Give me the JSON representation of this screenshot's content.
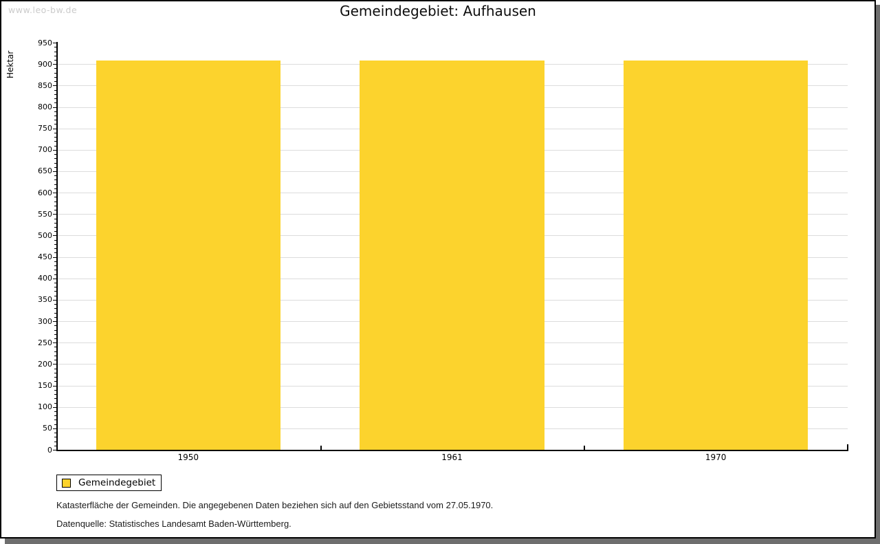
{
  "watermark": "www.leo-bw.de",
  "chart_data": {
    "type": "bar",
    "title": "Gemeindegebiet: Aufhausen",
    "categories": [
      "1950",
      "1961",
      "1970"
    ],
    "series": [
      {
        "name": "Gemeindegebiet",
        "values": [
          908,
          908,
          908
        ]
      }
    ],
    "xlabel": "",
    "ylabel": "Hektar",
    "ylim": [
      0,
      950
    ],
    "ytick_major": 50,
    "ytick_minor": 10,
    "gridlines_at": [
      50,
      100,
      150,
      200,
      250,
      300,
      350,
      400,
      450,
      500,
      550,
      600,
      650,
      700,
      750,
      800,
      850,
      900
    ],
    "grid": true,
    "bar_color": "#FCD32D",
    "gridline_color": "#dcdcdc",
    "legend_position": "bottom-left"
  },
  "legend": {
    "label": "Gemeindegebiet"
  },
  "footnotes": [
    "Katasterfläche der Gemeinden. Die angegebenen Daten beziehen sich auf den Gebietsstand vom 27.05.1970.",
    "Datenquelle: Statistisches Landesamt Baden-Württemberg."
  ]
}
